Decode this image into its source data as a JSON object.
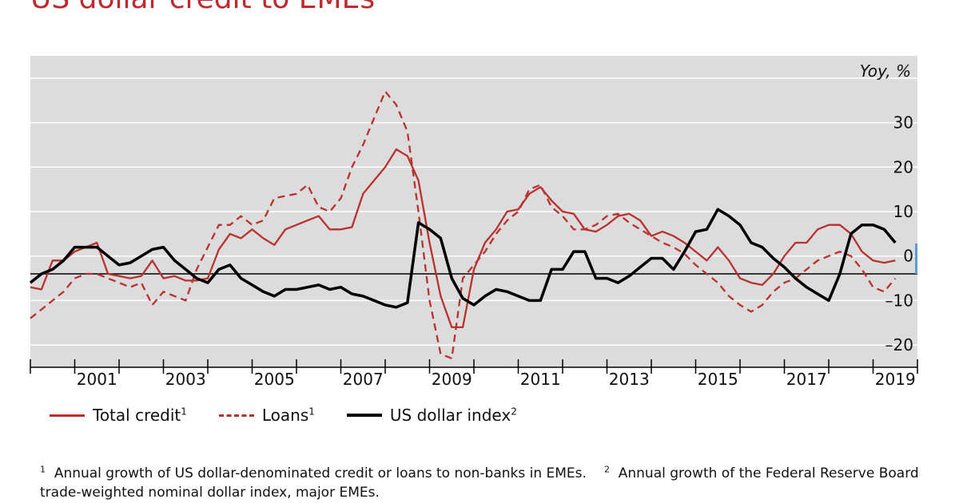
{
  "title": "US dollar credit to EMEs",
  "chart_data": {
    "type": "line",
    "title": "US dollar credit to EMEs",
    "ylabel": "Yoy, %",
    "ylim": [
      -25,
      45
    ],
    "xlim": [
      2000.0,
      2020.0
    ],
    "yticks": [
      -20,
      -10,
      0,
      10,
      20,
      30
    ],
    "ytick_labels": [
      "–20",
      "–10",
      "0",
      "10",
      "20",
      "30"
    ],
    "xticks": [
      2001,
      2003,
      2005,
      2007,
      2009,
      2011,
      2013,
      2015,
      2017,
      2019
    ],
    "zero_line": -4,
    "grid": true,
    "legend_position": "bottom",
    "series": [
      {
        "name": "Total credit",
        "color": "#b8312f",
        "style": "solid",
        "x": [
          2000.0,
          2000.25,
          2000.5,
          2000.75,
          2001.0,
          2001.25,
          2001.5,
          2001.75,
          2002.0,
          2002.25,
          2002.5,
          2002.75,
          2003.0,
          2003.25,
          2003.5,
          2003.75,
          2004.0,
          2004.25,
          2004.5,
          2004.75,
          2005.0,
          2005.25,
          2005.5,
          2005.75,
          2006.0,
          2006.25,
          2006.5,
          2006.75,
          2007.0,
          2007.25,
          2007.5,
          2007.75,
          2008.0,
          2008.25,
          2008.5,
          2008.75,
          2009.0,
          2009.25,
          2009.5,
          2009.75,
          2010.0,
          2010.25,
          2010.5,
          2010.75,
          2011.0,
          2011.25,
          2011.5,
          2011.75,
          2012.0,
          2012.25,
          2012.5,
          2012.75,
          2013.0,
          2013.25,
          2013.5,
          2013.75,
          2014.0,
          2014.25,
          2014.5,
          2014.75,
          2015.0,
          2015.25,
          2015.5,
          2015.75,
          2016.0,
          2016.25,
          2016.5,
          2016.75,
          2017.0,
          2017.25,
          2017.5,
          2017.75,
          2018.0,
          2018.25,
          2018.5,
          2018.75,
          2019.0,
          2019.25,
          2019.5
        ],
        "values": [
          -7,
          -7.5,
          -1,
          -1,
          1,
          2,
          3,
          -4,
          -4.5,
          -5,
          -4.5,
          -1,
          -5,
          -4.5,
          -5.5,
          -5.5,
          -5,
          1.5,
          5,
          4,
          6,
          4,
          2.5,
          6,
          7,
          8,
          9,
          6,
          6,
          6.5,
          14,
          17,
          20,
          24,
          22.5,
          17,
          3,
          -9,
          -16,
          -16,
          -3,
          3,
          6,
          10,
          10.5,
          14,
          15.5,
          12.5,
          10,
          9.5,
          6,
          5.5,
          7,
          9,
          9.5,
          8,
          4.5,
          5.5,
          4.5,
          3,
          1,
          -1,
          2,
          -1,
          -5,
          -6,
          -6.5,
          -4,
          0,
          3,
          3,
          6,
          7,
          7,
          5,
          1,
          -1,
          -1.5,
          -1
        ]
      },
      {
        "name": "Loans",
        "color": "#b8312f",
        "style": "dashed",
        "x": [
          2000.0,
          2000.25,
          2000.5,
          2000.75,
          2001.0,
          2001.25,
          2001.5,
          2001.75,
          2002.0,
          2002.25,
          2002.5,
          2002.75,
          2003.0,
          2003.25,
          2003.5,
          2003.75,
          2004.0,
          2004.25,
          2004.5,
          2004.75,
          2005.0,
          2005.25,
          2005.5,
          2005.75,
          2006.0,
          2006.25,
          2006.5,
          2006.75,
          2007.0,
          2007.25,
          2007.5,
          2007.75,
          2008.0,
          2008.25,
          2008.5,
          2008.75,
          2009.0,
          2009.25,
          2009.5,
          2009.75,
          2010.0,
          2010.25,
          2010.5,
          2010.75,
          2011.0,
          2011.25,
          2011.5,
          2011.75,
          2012.0,
          2012.25,
          2012.5,
          2012.75,
          2013.0,
          2013.25,
          2013.5,
          2013.75,
          2014.0,
          2014.25,
          2014.5,
          2014.75,
          2015.0,
          2015.25,
          2015.5,
          2015.75,
          2016.0,
          2016.25,
          2016.5,
          2016.75,
          2017.0,
          2017.25,
          2017.5,
          2017.75,
          2018.0,
          2018.25,
          2018.5,
          2018.75,
          2019.0,
          2019.25,
          2019.5
        ],
        "values": [
          -14,
          -12,
          -10,
          -8,
          -5,
          -4,
          -4,
          -5,
          -6,
          -7,
          -6,
          -11,
          -8,
          -9,
          -10,
          -3,
          2,
          7,
          7,
          9,
          7,
          8,
          13,
          13.5,
          14,
          16,
          11,
          10,
          13,
          20,
          25,
          31,
          37,
          34,
          28,
          10,
          -10,
          -22,
          -23,
          -5,
          -2,
          1,
          5,
          8,
          10,
          15,
          16,
          11,
          9,
          6,
          6,
          7,
          9,
          9.5,
          7.5,
          6,
          4.5,
          3,
          2,
          0.5,
          -2,
          -4,
          -6,
          -9,
          -11,
          -12.5,
          -11,
          -8,
          -6,
          -5,
          -3,
          -1,
          0,
          1,
          0,
          -3,
          -7,
          -8,
          -5
        ]
      },
      {
        "name": "US dollar index",
        "color": "#000000",
        "style": "solid",
        "x": [
          2000.0,
          2000.25,
          2000.5,
          2000.75,
          2001.0,
          2001.25,
          2001.5,
          2001.75,
          2002.0,
          2002.25,
          2002.5,
          2002.75,
          2003.0,
          2003.25,
          2003.5,
          2003.75,
          2004.0,
          2004.25,
          2004.5,
          2004.75,
          2005.0,
          2005.25,
          2005.5,
          2005.75,
          2006.0,
          2006.25,
          2006.5,
          2006.75,
          2007.0,
          2007.25,
          2007.5,
          2007.75,
          2008.0,
          2008.25,
          2008.5,
          2008.75,
          2009.0,
          2009.25,
          2009.5,
          2009.75,
          2010.0,
          2010.25,
          2010.5,
          2010.75,
          2011.0,
          2011.25,
          2011.5,
          2011.75,
          2012.0,
          2012.25,
          2012.5,
          2012.75,
          2013.0,
          2013.25,
          2013.5,
          2013.75,
          2014.0,
          2014.25,
          2014.5,
          2014.75,
          2015.0,
          2015.25,
          2015.5,
          2015.75,
          2016.0,
          2016.25,
          2016.5,
          2016.75,
          2017.0,
          2017.25,
          2017.5,
          2017.75,
          2018.0,
          2018.25,
          2018.5,
          2018.75,
          2019.0,
          2019.25,
          2019.5
        ],
        "values": [
          -6,
          -4,
          -3,
          -1,
          2,
          2,
          2,
          0,
          -2,
          -1.5,
          0,
          1.5,
          2,
          -1,
          -3,
          -5,
          -6,
          -3,
          -2,
          -5,
          -6.5,
          -8,
          -9,
          -7.5,
          -7.5,
          -7,
          -6.5,
          -7.5,
          -7,
          -8.5,
          -9,
          -10,
          -11,
          -11.5,
          -10.5,
          7.5,
          6,
          4,
          -5,
          -9.5,
          -11,
          -9,
          -7.5,
          -8,
          -9,
          -10,
          -10,
          -3,
          -3,
          1,
          1,
          -5,
          -5,
          -6,
          -4.5,
          -2.5,
          -0.5,
          -0.5,
          -3,
          1,
          5.5,
          6,
          10.5,
          9,
          7,
          3,
          2,
          -0.5,
          -2.5,
          -5,
          -7,
          -8.5,
          -10,
          -4,
          5,
          7,
          7,
          6,
          3
        ]
      }
    ]
  },
  "legend": {
    "total_credit": "Total credit",
    "total_credit_sup": "1",
    "loans": "Loans",
    "loans_sup": "1",
    "usd_index": "US dollar index",
    "usd_index_sup": "2"
  },
  "footnotes": {
    "fn1_marker": "1",
    "fn1_text": "Annual growth of US dollar-denominated credit or loans to non-banks in EMEs.",
    "fn2_marker": "2",
    "fn2_text": "Annual growth of the Federal Reserve Board trade-weighted nominal dollar index, major EMEs."
  },
  "colors": {
    "accent": "#c0282d",
    "plot_background": "#dcdcdc",
    "scroll_marker": "#5b9bd5"
  }
}
